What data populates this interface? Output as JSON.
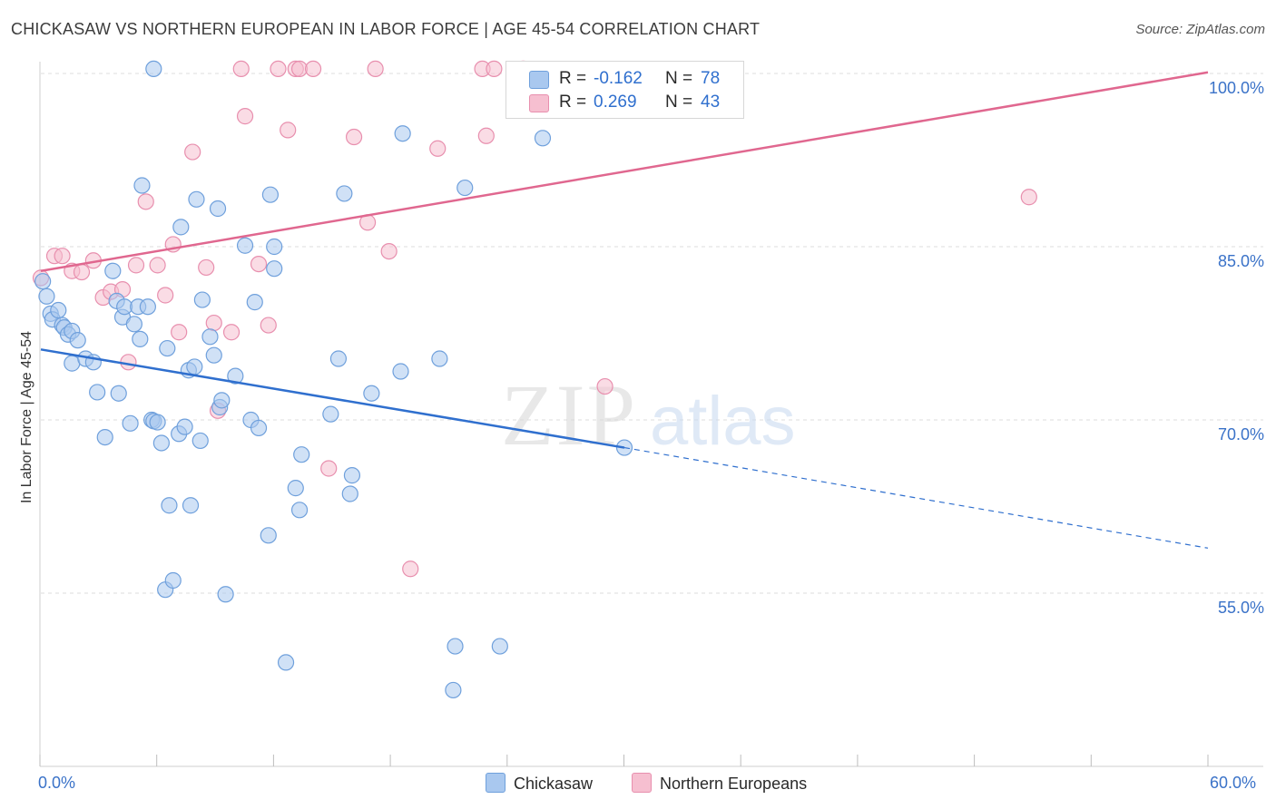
{
  "title": "CHICKASAW VS NORTHERN EUROPEAN IN LABOR FORCE | AGE 45-54 CORRELATION CHART",
  "source": "Source: ZipAtlas.com",
  "watermark": {
    "zip": "ZIP",
    "atlas": "atlas"
  },
  "legend_top": {
    "r_label": "R =",
    "n_label": "N =",
    "chickasaw": {
      "r": "-0.162",
      "n": "78"
    },
    "northern": {
      "r": "0.269",
      "n": "43"
    }
  },
  "colors": {
    "chickasaw_fill": "#a9c8ef",
    "chickasaw_stroke": "#6fa0dc",
    "chickasaw_line": "#2f6fce",
    "northern_fill": "#f6bfd0",
    "northern_stroke": "#e88fae",
    "northern_line": "#e0678f",
    "tick_label": "#3a72c8",
    "grid": "#dcdcdc"
  },
  "chart_data": {
    "type": "scatter",
    "title": "CHICKASAW VS NORTHERN EUROPEAN IN LABOR FORCE | AGE 45-54 CORRELATION CHART",
    "xlabel": "",
    "ylabel": "In Labor Force | Age 45-54",
    "xlim": [
      0,
      60
    ],
    "ylim": [
      45,
      103
    ],
    "x_tick_labels": [
      "0.0%",
      "60.0%"
    ],
    "y_ticks": [
      55,
      70,
      85,
      100
    ],
    "y_tick_labels": [
      "55.0%",
      "70.0%",
      "85.0%",
      "100.0%"
    ],
    "grid": true,
    "legend_position": "top-center",
    "series": [
      {
        "name": "Chickasaw",
        "r": -0.162,
        "n": 78,
        "trend": {
          "x0": 0,
          "y0": 76.1,
          "x1": 30,
          "y1": 67.6,
          "dashed_to_x": 60,
          "dashed_to_y": 58.9
        },
        "points": [
          [
            0.1,
            82.0
          ],
          [
            0.3,
            80.7
          ],
          [
            0.5,
            79.2
          ],
          [
            0.6,
            78.7
          ],
          [
            0.9,
            79.5
          ],
          [
            1.1,
            78.2
          ],
          [
            1.2,
            78.0
          ],
          [
            1.4,
            77.4
          ],
          [
            1.6,
            77.7
          ],
          [
            1.9,
            76.9
          ],
          [
            1.6,
            74.9
          ],
          [
            2.3,
            75.3
          ],
          [
            2.7,
            75.0
          ],
          [
            2.9,
            72.4
          ],
          [
            3.3,
            68.5
          ],
          [
            3.7,
            82.9
          ],
          [
            3.9,
            80.3
          ],
          [
            4.0,
            72.3
          ],
          [
            4.2,
            78.9
          ],
          [
            4.3,
            79.8
          ],
          [
            4.6,
            69.7
          ],
          [
            4.8,
            78.3
          ],
          [
            5.0,
            79.8
          ],
          [
            5.1,
            77.0
          ],
          [
            5.2,
            90.3
          ],
          [
            5.5,
            79.8
          ],
          [
            5.7,
            70.0
          ],
          [
            5.8,
            69.9
          ],
          [
            6.0,
            69.8
          ],
          [
            5.8,
            100.4
          ],
          [
            6.2,
            68.0
          ],
          [
            6.4,
            55.3
          ],
          [
            6.5,
            76.2
          ],
          [
            6.6,
            62.6
          ],
          [
            6.8,
            56.1
          ],
          [
            7.1,
            68.8
          ],
          [
            7.2,
            86.7
          ],
          [
            7.4,
            69.4
          ],
          [
            7.6,
            74.3
          ],
          [
            7.7,
            62.6
          ],
          [
            7.9,
            74.6
          ],
          [
            8.0,
            89.1
          ],
          [
            8.2,
            68.2
          ],
          [
            8.3,
            80.4
          ],
          [
            8.7,
            77.2
          ],
          [
            8.9,
            75.6
          ],
          [
            9.1,
            88.3
          ],
          [
            9.2,
            71.1
          ],
          [
            9.3,
            71.7
          ],
          [
            9.5,
            54.9
          ],
          [
            10.0,
            73.8
          ],
          [
            10.5,
            85.1
          ],
          [
            10.8,
            70.0
          ],
          [
            11.0,
            80.2
          ],
          [
            11.2,
            69.3
          ],
          [
            11.7,
            60.0
          ],
          [
            11.8,
            89.5
          ],
          [
            12.0,
            83.1
          ],
          [
            12.0,
            85.0
          ],
          [
            12.6,
            49.0
          ],
          [
            13.1,
            64.1
          ],
          [
            13.3,
            62.2
          ],
          [
            13.4,
            67.0
          ],
          [
            14.9,
            70.5
          ],
          [
            15.3,
            75.3
          ],
          [
            15.6,
            89.6
          ],
          [
            15.9,
            63.6
          ],
          [
            16.0,
            65.2
          ],
          [
            17.0,
            72.3
          ],
          [
            18.5,
            74.2
          ],
          [
            18.6,
            94.8
          ],
          [
            20.5,
            75.3
          ],
          [
            21.2,
            46.6
          ],
          [
            21.3,
            50.4
          ],
          [
            21.8,
            90.1
          ],
          [
            23.6,
            50.4
          ],
          [
            25.8,
            94.4
          ],
          [
            30.0,
            67.6
          ]
        ]
      },
      {
        "name": "Northern Europeans",
        "r": 0.269,
        "n": 43,
        "trend": {
          "x0": 0,
          "y0": 82.9,
          "x1": 60,
          "y1": 100.1
        },
        "points": [
          [
            0.0,
            82.3
          ],
          [
            0.7,
            84.2
          ],
          [
            1.1,
            84.2
          ],
          [
            1.6,
            82.9
          ],
          [
            2.1,
            82.8
          ],
          [
            2.7,
            83.8
          ],
          [
            3.2,
            80.6
          ],
          [
            3.6,
            81.1
          ],
          [
            4.2,
            81.3
          ],
          [
            4.5,
            75.0
          ],
          [
            4.9,
            83.4
          ],
          [
            5.4,
            88.9
          ],
          [
            6.0,
            83.4
          ],
          [
            6.4,
            80.8
          ],
          [
            6.8,
            85.2
          ],
          [
            7.1,
            77.6
          ],
          [
            7.8,
            93.2
          ],
          [
            8.5,
            83.2
          ],
          [
            8.9,
            78.4
          ],
          [
            9.1,
            70.8
          ],
          [
            9.8,
            77.6
          ],
          [
            10.3,
            100.4
          ],
          [
            10.5,
            96.3
          ],
          [
            11.2,
            83.5
          ],
          [
            11.7,
            78.2
          ],
          [
            12.2,
            100.4
          ],
          [
            12.7,
            95.1
          ],
          [
            13.1,
            100.4
          ],
          [
            13.3,
            100.4
          ],
          [
            14.0,
            100.4
          ],
          [
            14.8,
            65.8
          ],
          [
            16.1,
            94.5
          ],
          [
            16.8,
            87.1
          ],
          [
            17.2,
            100.4
          ],
          [
            17.9,
            84.6
          ],
          [
            19.0,
            57.1
          ],
          [
            20.4,
            93.5
          ],
          [
            22.7,
            100.4
          ],
          [
            22.9,
            94.6
          ],
          [
            23.3,
            100.4
          ],
          [
            24.8,
            100.4
          ],
          [
            29.0,
            72.9
          ],
          [
            50.8,
            89.3
          ]
        ]
      }
    ]
  },
  "legend_bottom": {
    "chickasaw": "Chickasaw",
    "northern": "Northern Europeans"
  }
}
